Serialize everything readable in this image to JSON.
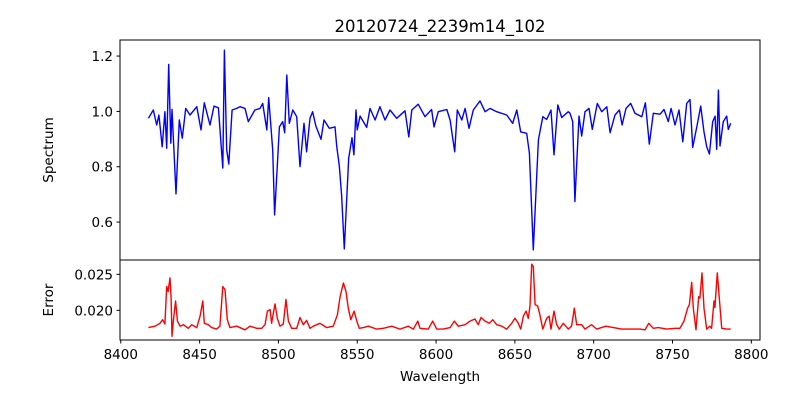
{
  "chart_data": [
    {
      "type": "line",
      "title": "20120724_2239m14_102",
      "xlabel": "",
      "ylabel": "Spectrum",
      "xlim": [
        8399.5,
        8805.5
      ],
      "ylim": [
        0.463,
        1.258
      ],
      "yticks": [
        0.6,
        0.8,
        1.0,
        1.2
      ],
      "ytick_labels": [
        "0.6",
        "0.8",
        "1.0",
        "1.2"
      ],
      "grid": false,
      "series": [
        {
          "name": "Spectrum",
          "color": "#0000ff",
          "x": [
            8417.5,
            8420.6,
            8422.8,
            8424.2,
            8426.3,
            8428.0,
            8429.1,
            8430.4,
            8431.7,
            8432.5,
            8435.0,
            8437.1,
            8439.0,
            8441.2,
            8443.9,
            8448.2,
            8450.9,
            8453.0,
            8456.6,
            8459.1,
            8461.9,
            8464.7,
            8465.7,
            8467.2,
            8468.5,
            8470.6,
            8473.5,
            8475.6,
            8478.8,
            8480.9,
            8485.1,
            8488.3,
            8490.0,
            8492.6,
            8493.8,
            8496.4,
            8497.6,
            8500.6,
            8502.7,
            8504.0,
            8505.3,
            8506.9,
            8509.1,
            8511.6,
            8513.7,
            8516.2,
            8517.9,
            8520.0,
            8521.7,
            8523.8,
            8527.0,
            8528.9,
            8532.3,
            8535.9,
            8537.0,
            8538.6,
            8540.1,
            8541.8,
            8544.6,
            8546.7,
            8547.9,
            8549.2,
            8550.0,
            8551.8,
            8556.0,
            8558.1,
            8561.3,
            8564.4,
            8567.6,
            8570.8,
            8575.0,
            8580.3,
            8582.7,
            8584.6,
            8588.7,
            8593.0,
            8597.2,
            8598.7,
            8601.4,
            8606.8,
            8608.9,
            8611.8,
            8613.5,
            8616.3,
            8618.4,
            8620.9,
            8623.6,
            8627.9,
            8631.1,
            8634.2,
            8638.5,
            8644.8,
            8648.6,
            8651.2,
            8653.7,
            8657.5,
            8659.2,
            8661.7,
            8664.9,
            8667.7,
            8670.2,
            8672.9,
            8674.8,
            8677.2,
            8679.7,
            8683.9,
            8685.0,
            8686.7,
            8688.1,
            8690.7,
            8692.4,
            8694.5,
            8697.0,
            8699.1,
            8702.3,
            8705.1,
            8708.3,
            8710.4,
            8713.5,
            8716.3,
            8718.0,
            8720.5,
            8723.5,
            8726.2,
            8730.5,
            8732.8,
            8735.3,
            8737.8,
            8742.1,
            8744.6,
            8747.3,
            8749.1,
            8751.6,
            8754.1,
            8756.5,
            8759.0,
            8761.1,
            8762.8,
            8765.4,
            8767.9,
            8770.0,
            8771.7,
            8773.4,
            8775.5,
            8777.0,
            8778.0,
            8779.1,
            8780.1,
            8782.2,
            8784.4,
            8785.4,
            8786.9
          ],
          "y": [
            0.975,
            1.005,
            0.951,
            0.987,
            0.872,
            0.999,
            0.867,
            1.17,
            0.885,
            1.007,
            0.702,
            0.969,
            0.903,
            1.011,
            0.987,
            1.017,
            0.933,
            1.031,
            0.951,
            1.019,
            1.013,
            0.795,
            1.221,
            0.861,
            0.81,
            1.005,
            1.011,
            1.017,
            1.011,
            0.963,
            1.005,
            1.011,
            1.029,
            0.933,
            1.05,
            0.861,
            0.626,
            0.944,
            0.963,
            0.923,
            1.131,
            0.957,
            1.005,
            0.981,
            0.8,
            0.957,
            0.854,
            0.975,
            0.999,
            0.947,
            0.899,
            0.969,
            0.939,
            0.944,
            0.875,
            0.803,
            0.698,
            0.503,
            0.831,
            0.905,
            0.843,
            1.005,
            0.933,
            0.983,
            0.942,
            1.011,
            0.969,
            1.017,
            0.969,
            1.005,
            0.975,
            1.002,
            0.908,
            1.005,
            1.026,
            0.981,
            1.007,
            0.944,
            0.999,
            1.007,
            0.969,
            0.854,
            1.005,
            0.969,
            1.011,
            0.939,
            1.005,
            1.038,
            0.999,
            1.011,
            0.999,
            0.987,
            0.957,
            1.005,
            0.926,
            0.921,
            0.849,
            0.5,
            0.897,
            0.981,
            0.971,
            1.005,
            0.843,
            1.023,
            0.978,
            0.999,
            0.993,
            0.963,
            0.674,
            0.983,
            0.911,
            0.999,
            1.011,
            0.935,
            1.029,
            0.999,
            1.017,
            0.923,
            0.987,
            1.005,
            0.951,
            1.011,
            1.029,
            0.993,
            0.981,
            1.031,
            0.882,
            0.993,
            0.99,
            1.007,
            0.963,
            1.011,
            0.951,
            1.005,
            0.89,
            1.029,
            1.043,
            0.87,
            0.944,
            1.019,
            0.926,
            0.872,
            0.846,
            0.963,
            0.983,
            0.863,
            1.077,
            0.875,
            0.963,
            0.983,
            0.935,
            0.957
          ]
        }
      ]
    },
    {
      "type": "line",
      "title": "",
      "xlabel": "Wavelength",
      "ylabel": "Error",
      "xlim": [
        8399.5,
        8805.5
      ],
      "ylim": [
        0.01588,
        0.02699
      ],
      "yticks": [
        0.02,
        0.025
      ],
      "ytick_labels": [
        "0.020",
        "0.025"
      ],
      "xticks": [
        8400,
        8450,
        8500,
        8550,
        8600,
        8650,
        8700,
        8750,
        8800
      ],
      "xtick_labels": [
        "8400",
        "8450",
        "8500",
        "8550",
        "8600",
        "8650",
        "8700",
        "8750",
        "8800"
      ],
      "grid": false,
      "series": [
        {
          "name": "Error",
          "color": "#ff0000",
          "x": [
            8417.5,
            8421.7,
            8424.9,
            8426.6,
            8428.0,
            8429.1,
            8430.0,
            8431.2,
            8431.9,
            8432.5,
            8433.3,
            8434.8,
            8435.9,
            8437.6,
            8439.7,
            8442.8,
            8445.0,
            8448.2,
            8450.3,
            8452.0,
            8453.0,
            8455.5,
            8457.7,
            8460.8,
            8462.9,
            8464.7,
            8466.1,
            8467.6,
            8469.3,
            8473.5,
            8478.8,
            8482.0,
            8486.2,
            8489.4,
            8491.5,
            8493.0,
            8494.7,
            8495.7,
            8497.8,
            8499.3,
            8501.0,
            8503.1,
            8504.8,
            8506.3,
            8508.4,
            8511.6,
            8513.7,
            8515.8,
            8517.9,
            8520.0,
            8522.1,
            8526.4,
            8530.6,
            8534.8,
            8537.4,
            8539.1,
            8541.2,
            8542.9,
            8544.3,
            8545.9,
            8548.0,
            8549.7,
            8551.3,
            8553.9,
            8557.0,
            8562.4,
            8566.5,
            8571.9,
            8577.1,
            8582.4,
            8585.6,
            8588.4,
            8589.8,
            8595.1,
            8597.9,
            8600.4,
            8604.6,
            8608.9,
            8611.6,
            8614.1,
            8618.4,
            8621.5,
            8624.7,
            8626.8,
            8628.5,
            8631.1,
            8633.8,
            8635.9,
            8638.5,
            8641.7,
            8644.8,
            8648.0,
            8650.1,
            8652.2,
            8653.7,
            8655.4,
            8657.1,
            8658.5,
            8659.6,
            8660.7,
            8661.7,
            8662.8,
            8664.5,
            8665.9,
            8667.7,
            8670.2,
            8671.7,
            8672.9,
            8674.8,
            8676.5,
            8678.2,
            8680.7,
            8683.9,
            8686.0,
            8687.7,
            8689.2,
            8692.4,
            8694.5,
            8698.7,
            8701.9,
            8707.8,
            8712.4,
            8717.8,
            8723.0,
            8729.4,
            8732.6,
            8734.9,
            8737.8,
            8741.0,
            8746.3,
            8751.6,
            8754.7,
            8757.3,
            8759.6,
            8760.7,
            8762.2,
            8763.2,
            8764.9,
            8766.6,
            8767.4,
            8768.7,
            8770.0,
            8771.7,
            8773.8,
            8774.8,
            8776.3,
            8776.9,
            8778.4,
            8779.7,
            8781.2,
            8784.4,
            8786.9
          ],
          "y": [
            0.0176,
            0.0178,
            0.0182,
            0.0187,
            0.0181,
            0.0233,
            0.0226,
            0.0245,
            0.0217,
            0.0164,
            0.0185,
            0.0213,
            0.0185,
            0.0178,
            0.018,
            0.0175,
            0.018,
            0.0176,
            0.0192,
            0.0213,
            0.0182,
            0.018,
            0.0176,
            0.0174,
            0.0178,
            0.0233,
            0.0229,
            0.0187,
            0.0176,
            0.0178,
            0.0173,
            0.0178,
            0.0175,
            0.0175,
            0.018,
            0.0199,
            0.0201,
            0.0182,
            0.0209,
            0.0189,
            0.0178,
            0.0181,
            0.0215,
            0.0185,
            0.0175,
            0.0175,
            0.019,
            0.018,
            0.0186,
            0.0175,
            0.0178,
            0.0182,
            0.0176,
            0.0178,
            0.0194,
            0.0219,
            0.0238,
            0.0226,
            0.0203,
            0.0187,
            0.0199,
            0.0185,
            0.0175,
            0.0176,
            0.0178,
            0.0174,
            0.0175,
            0.0178,
            0.0174,
            0.0178,
            0.0174,
            0.0185,
            0.0175,
            0.0174,
            0.0185,
            0.0174,
            0.0174,
            0.0176,
            0.0185,
            0.0178,
            0.018,
            0.0185,
            0.0188,
            0.018,
            0.019,
            0.0185,
            0.0182,
            0.0187,
            0.018,
            0.0178,
            0.0174,
            0.0182,
            0.0189,
            0.0182,
            0.0174,
            0.0192,
            0.0199,
            0.0189,
            0.0206,
            0.0264,
            0.0261,
            0.0208,
            0.0206,
            0.0194,
            0.0174,
            0.0189,
            0.0192,
            0.0174,
            0.0199,
            0.018,
            0.0174,
            0.0182,
            0.0174,
            0.0178,
            0.0203,
            0.018,
            0.018,
            0.0174,
            0.018,
            0.0174,
            0.0178,
            0.0176,
            0.0174,
            0.0174,
            0.0174,
            0.0173,
            0.0182,
            0.0175,
            0.0176,
            0.0174,
            0.0175,
            0.0175,
            0.0185,
            0.0203,
            0.0208,
            0.0239,
            0.0203,
            0.0173,
            0.0219,
            0.0217,
            0.0252,
            0.0203,
            0.0174,
            0.0178,
            0.0175,
            0.0213,
            0.0204,
            0.0252,
            0.0217,
            0.0175,
            0.0174,
            0.0174
          ]
        }
      ]
    }
  ]
}
